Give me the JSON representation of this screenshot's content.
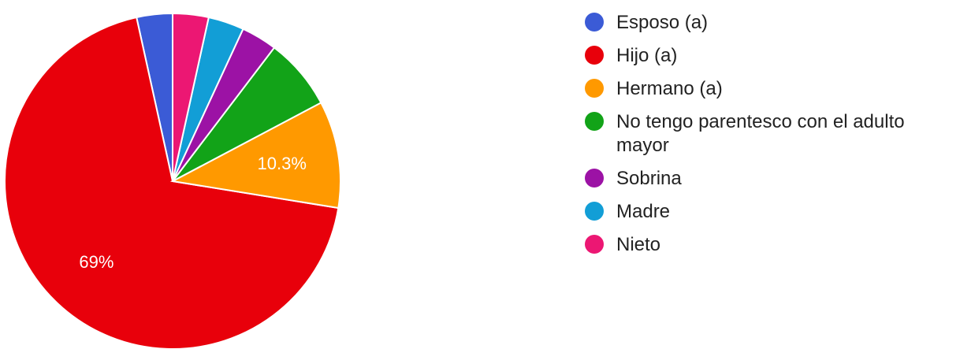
{
  "chart_data": {
    "type": "pie",
    "categories": [
      "Esposo (a)",
      "Hijo (a)",
      "Hermano (a)",
      "No tengo parentesco con el adulto mayor",
      "Sobrina",
      "Madre",
      "Nieto"
    ],
    "values": [
      3.45,
      69.0,
      10.3,
      6.9,
      3.45,
      3.45,
      3.45
    ],
    "slice_labels": [
      "",
      "69%",
      "10.3%",
      "",
      "",
      "",
      ""
    ],
    "colors": [
      "#3b5bd6",
      "#e8000b",
      "#ff9900",
      "#12a318",
      "#9c12a5",
      "#129ed6",
      "#ec1773"
    ],
    "legend_position": "right"
  }
}
